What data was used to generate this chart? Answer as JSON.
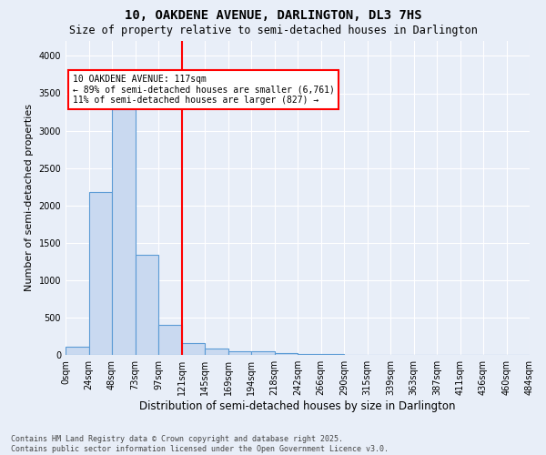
{
  "title1": "10, OAKDENE AVENUE, DARLINGTON, DL3 7HS",
  "title2": "Size of property relative to semi-detached houses in Darlington",
  "xlabel": "Distribution of semi-detached houses by size in Darlington",
  "ylabel": "Number of semi-detached properties",
  "bin_labels": [
    "0sqm",
    "24sqm",
    "48sqm",
    "73sqm",
    "97sqm",
    "121sqm",
    "145sqm",
    "169sqm",
    "194sqm",
    "218sqm",
    "242sqm",
    "266sqm",
    "290sqm",
    "315sqm",
    "339sqm",
    "363sqm",
    "387sqm",
    "411sqm",
    "436sqm",
    "460sqm",
    "484sqm"
  ],
  "bar_values": [
    105,
    2175,
    3290,
    1345,
    405,
    155,
    90,
    50,
    45,
    20,
    15,
    10,
    5,
    0,
    0,
    0,
    0,
    0,
    0,
    0
  ],
  "bar_color": "#c9d9f0",
  "bar_edge_color": "#5b9bd5",
  "vline_bin_index": 5,
  "annotation_text": "10 OAKDENE AVENUE: 117sqm\n← 89% of semi-detached houses are smaller (6,761)\n11% of semi-detached houses are larger (827) →",
  "annotation_box_color": "white",
  "annotation_box_edge_color": "red",
  "vline_color": "red",
  "footnote": "Contains HM Land Registry data © Crown copyright and database right 2025.\nContains public sector information licensed under the Open Government Licence v3.0.",
  "ylim": [
    0,
    4200
  ],
  "yticks": [
    0,
    500,
    1000,
    1500,
    2000,
    2500,
    3000,
    3500,
    4000
  ],
  "background_color": "#e8eef8",
  "grid_color": "white",
  "title1_fontsize": 10,
  "title2_fontsize": 8.5,
  "ylabel_fontsize": 8,
  "xlabel_fontsize": 8.5,
  "tick_fontsize": 7,
  "footnote_fontsize": 6
}
